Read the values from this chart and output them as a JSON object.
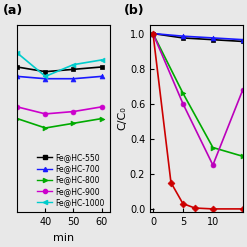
{
  "background_color": "#e8e8e8",
  "panel_a": {
    "title": "(a)",
    "ylabel": "",
    "xlabel": "min",
    "xlim": [
      30,
      63
    ],
    "ylim": [
      0.3,
      1.1
    ],
    "yticks": [],
    "xticks": [
      40,
      50,
      60
    ],
    "series": [
      {
        "label": "Fe@HC-550",
        "color": "#000000",
        "marker": "s",
        "x": [
          30,
          40,
          50,
          60
        ],
        "y": [
          0.92,
          0.9,
          0.91,
          0.92
        ]
      },
      {
        "label": "Fe@HC-700",
        "color": "#1a1aff",
        "marker": "^",
        "x": [
          30,
          40,
          50,
          60
        ],
        "y": [
          0.88,
          0.87,
          0.87,
          0.88
        ]
      },
      {
        "label": "Fe@HC-800",
        "color": "#00aa00",
        "marker": ">",
        "x": [
          30,
          40,
          50,
          60
        ],
        "y": [
          0.7,
          0.66,
          0.68,
          0.7
        ]
      },
      {
        "label": "Fe@HC-900",
        "color": "#cc00cc",
        "marker": "o",
        "x": [
          30,
          40,
          50,
          60
        ],
        "y": [
          0.75,
          0.72,
          0.73,
          0.75
        ]
      },
      {
        "label": "Fe@HC-1000",
        "color": "#00cccc",
        "marker": "<",
        "x": [
          30,
          40,
          50,
          60
        ],
        "y": [
          0.98,
          0.88,
          0.93,
          0.95
        ]
      }
    ],
    "legend_pos": "center right"
  },
  "panel_b": {
    "title": "(b)",
    "ylabel": "C/C₀",
    "xlabel": "",
    "xlim": [
      -0.5,
      15
    ],
    "ylim": [
      -0.02,
      1.05
    ],
    "yticks": [
      0.0,
      0.2,
      0.4,
      0.6,
      0.8,
      1.0
    ],
    "xticks": [
      0,
      5,
      10
    ],
    "series": [
      {
        "label": "Fe@HC-550",
        "color": "#000000",
        "marker": "s",
        "x": [
          0,
          5,
          10,
          15
        ],
        "y": [
          1.0,
          0.975,
          0.965,
          0.955
        ]
      },
      {
        "label": "Fe@HC-700",
        "color": "#1a1aff",
        "marker": "^",
        "x": [
          0,
          5,
          10,
          15
        ],
        "y": [
          1.0,
          0.985,
          0.975,
          0.965
        ]
      },
      {
        "label": "Fe@HC-800",
        "color": "#00aa00",
        "marker": ">",
        "x": [
          0,
          5,
          10,
          15
        ],
        "y": [
          1.0,
          0.66,
          0.35,
          0.3
        ]
      },
      {
        "label": "Fe@HC-900",
        "color": "#bb00bb",
        "marker": "o",
        "x": [
          0,
          5,
          10,
          15
        ],
        "y": [
          1.0,
          0.6,
          0.25,
          0.68
        ]
      },
      {
        "label": "Fe@HC-1000",
        "color": "#cc0000",
        "marker": "D",
        "x": [
          0,
          3,
          5,
          7,
          10,
          15
        ],
        "y": [
          1.0,
          0.15,
          0.03,
          0.005,
          0.0,
          0.0
        ]
      }
    ]
  }
}
